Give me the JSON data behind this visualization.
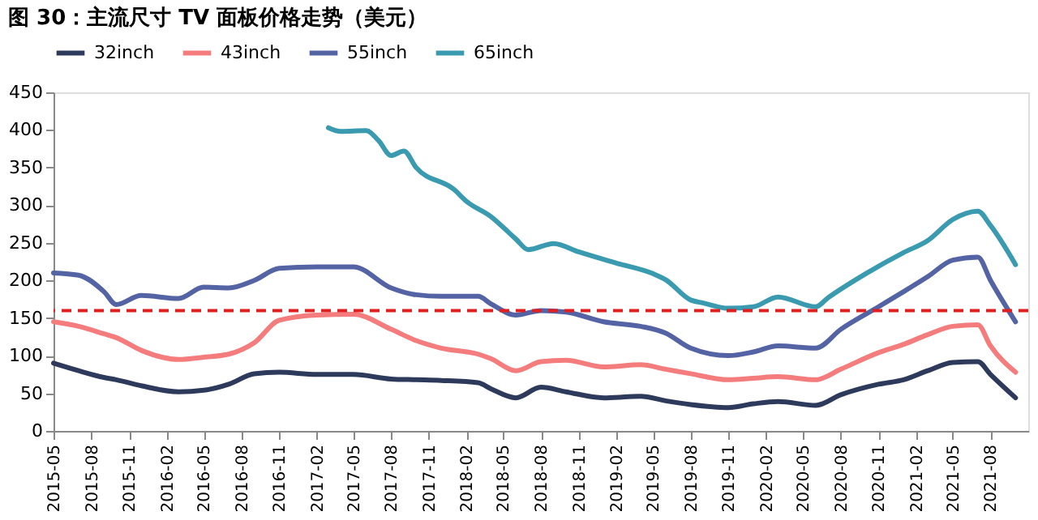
{
  "chart_data": {
    "type": "line",
    "title": "图 30：主流尺寸 TV 面板价格走势（美元）",
    "x": [
      "2015-05",
      "2015-07",
      "2015-09",
      "2015-10",
      "2015-12",
      "2016-03",
      "2016-05",
      "2016-07",
      "2016-09",
      "2016-11",
      "2017-02",
      "2017-05",
      "2017-08",
      "2017-10",
      "2017-12",
      "2018-03",
      "2018-04",
      "2018-06",
      "2018-08",
      "2018-10",
      "2019-01",
      "2019-04",
      "2019-06",
      "2019-08",
      "2019-11",
      "2020-01",
      "2020-03",
      "2020-06",
      "2020-08",
      "2020-11",
      "2021-01",
      "2021-03",
      "2021-05",
      "2021-07",
      "2021-08",
      "2021-10"
    ],
    "series": [
      {
        "name": "32inch",
        "color": "#2e3a5c",
        "values": [
          90,
          80,
          71,
          68,
          60,
          52,
          54,
          62,
          76,
          78,
          75,
          75,
          69,
          68,
          67,
          64,
          56,
          44,
          58,
          52,
          44,
          46,
          40,
          35,
          31,
          36,
          39,
          34,
          48,
          62,
          68,
          80,
          91,
          92,
          75,
          44
        ]
      },
      {
        "name": "43inch",
        "color": "#f47c7c",
        "values": [
          145,
          139,
          129,
          124,
          107,
          95,
          98,
          102,
          117,
          147,
          154,
          155,
          135,
          120,
          110,
          102,
          96,
          80,
          92,
          94,
          85,
          88,
          82,
          76,
          68,
          70,
          72,
          68,
          82,
          104,
          115,
          128,
          139,
          141,
          113,
          78
        ]
      },
      {
        "name": "55inch",
        "color": "#5463a3",
        "values": [
          210,
          207,
          185,
          168,
          180,
          176,
          191,
          190,
          200,
          216,
          218,
          218,
          190,
          181,
          179,
          179,
          169,
          154,
          160,
          158,
          145,
          139,
          130,
          110,
          100,
          105,
          113,
          110,
          135,
          165,
          185,
          205,
          227,
          231,
          200,
          145
        ]
      },
      {
        "name": "65inch",
        "color": "#3a9bb0",
        "x": [
          "2017-03",
          "2017-04",
          "2017-06",
          "2017-07",
          "2017-08",
          "2017-09",
          "2017-10",
          "2018-01",
          "2018-02",
          "2018-04",
          "2018-06",
          "2018-07",
          "2018-09",
          "2018-11",
          "2019-02",
          "2019-05",
          "2019-06",
          "2019-08",
          "2019-09",
          "2019-11",
          "2020-01",
          "2020-03",
          "2020-06",
          "2020-07",
          "2020-10",
          "2021-01",
          "2021-03",
          "2021-05",
          "2021-07",
          "2021-08",
          "2021-10"
        ],
        "values": [
          403,
          398,
          399,
          386,
          366,
          372,
          350,
          321,
          305,
          285,
          255,
          241,
          249,
          238,
          223,
          209,
          201,
          174,
          170,
          163,
          165,
          178,
          165,
          177,
          209,
          237,
          253,
          281,
          292,
          273,
          221
        ]
      }
    ],
    "xlim": [
      "2015-05",
      "2021-11"
    ],
    "xticks": [
      "2015-05",
      "2015-08",
      "2015-11",
      "2016-02",
      "2016-05",
      "2016-08",
      "2016-11",
      "2017-02",
      "2017-05",
      "2017-08",
      "2017-11",
      "2018-02",
      "2018-05",
      "2018-08",
      "2018-11",
      "2019-02",
      "2019-05",
      "2019-08",
      "2019-11",
      "2020-02",
      "2020-05",
      "2020-08",
      "2020-11",
      "2021-02",
      "2021-05",
      "2021-08"
    ],
    "ylim": [
      0,
      450
    ],
    "yticks": [
      0,
      50,
      100,
      150,
      200,
      250,
      300,
      350,
      400,
      450
    ],
    "ref_lines": [
      {
        "axis": "y",
        "value": 160,
        "color": "#e02020",
        "line_style": "dashed"
      }
    ],
    "legend": "top",
    "grid": false,
    "line_style": "solid",
    "marker": "none"
  }
}
